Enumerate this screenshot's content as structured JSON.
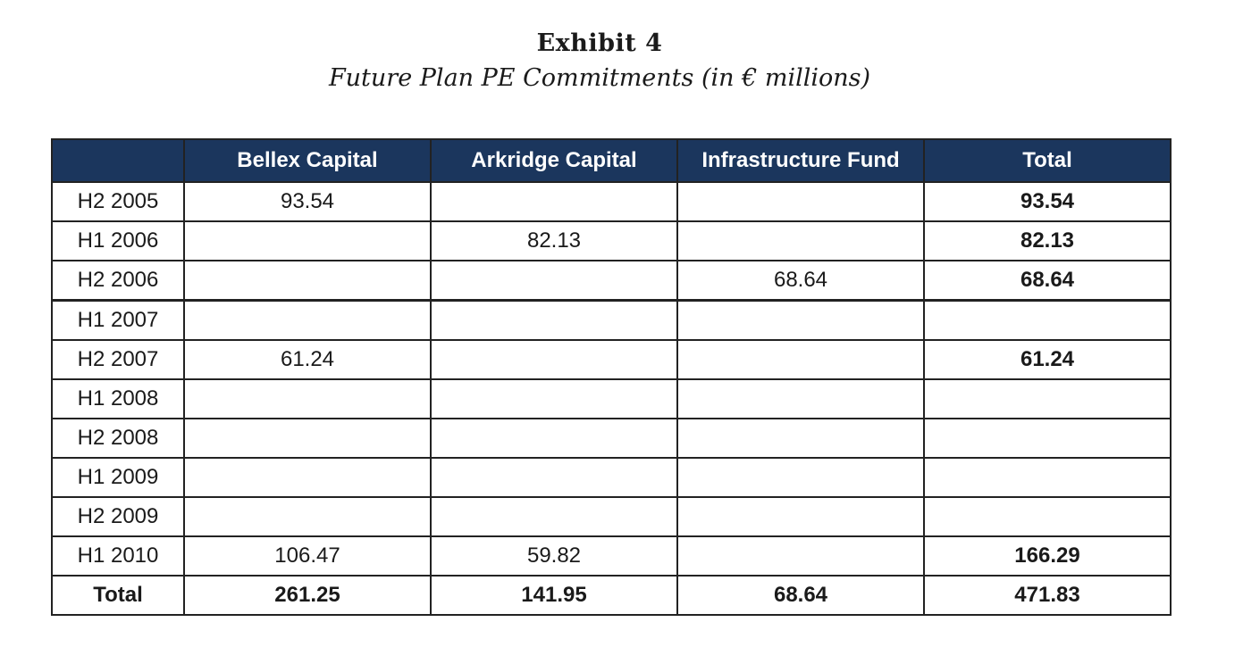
{
  "exhibit": {
    "title": "Exhibit 4",
    "subtitle": "Future Plan PE Commitments (in € millions)"
  },
  "table": {
    "headers": [
      "",
      "Bellex Capital",
      "Arkridge Capital",
      "Infrastructure Fund",
      "Total"
    ],
    "rows": [
      {
        "period": "H2 2005",
        "bellex": "93.54",
        "arkridge": "",
        "infrastructure": "",
        "total": "93.54"
      },
      {
        "period": "H1 2006",
        "bellex": "",
        "arkridge": "82.13",
        "infrastructure": "",
        "total": "82.13"
      },
      {
        "period": "H2 2006",
        "bellex": "",
        "arkridge": "",
        "infrastructure": "68.64",
        "total": "68.64"
      },
      {
        "period": "H1 2007",
        "bellex": "",
        "arkridge": "",
        "infrastructure": "",
        "total": ""
      },
      {
        "period": "H2 2007",
        "bellex": "61.24",
        "arkridge": "",
        "infrastructure": "",
        "total": "61.24"
      },
      {
        "period": "H1 2008",
        "bellex": "",
        "arkridge": "",
        "infrastructure": "",
        "total": ""
      },
      {
        "period": "H2 2008",
        "bellex": "",
        "arkridge": "",
        "infrastructure": "",
        "total": ""
      },
      {
        "period": "H1 2009",
        "bellex": "",
        "arkridge": "",
        "infrastructure": "",
        "total": ""
      },
      {
        "period": "H2 2009",
        "bellex": "",
        "arkridge": "",
        "infrastructure": "",
        "total": ""
      },
      {
        "period": "H1 2010",
        "bellex": "106.47",
        "arkridge": "59.82",
        "infrastructure": "",
        "total": "166.29"
      }
    ],
    "total_row": {
      "period": "Total",
      "bellex": "261.25",
      "arkridge": "141.95",
      "infrastructure": "68.64",
      "total": "471.83"
    }
  },
  "colors": {
    "header_bg": "#1b365d",
    "header_text": "#ffffff",
    "border": "#222222"
  }
}
